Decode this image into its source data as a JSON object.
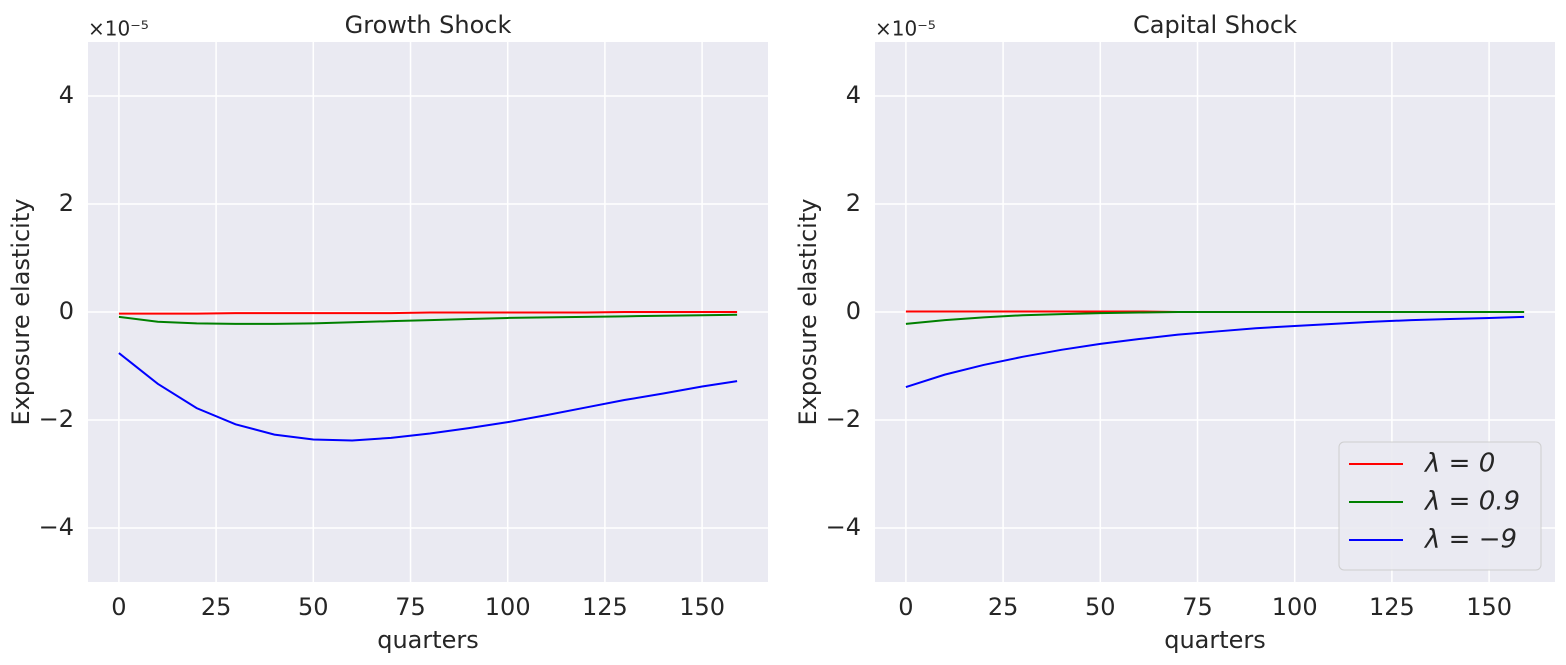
{
  "chart_data": [
    {
      "type": "line",
      "title": "Growth Shock",
      "xlabel": "quarters",
      "ylabel": "Exposure elasticity",
      "offset_text": "×10⁻⁵",
      "x": [
        0,
        10,
        20,
        30,
        40,
        50,
        60,
        70,
        80,
        90,
        100,
        110,
        120,
        130,
        140,
        150,
        159
      ],
      "series": [
        {
          "color": "#ff0000",
          "values": [
            -0.03,
            -0.03,
            -0.03,
            -0.02,
            -0.02,
            -0.02,
            -0.02,
            -0.02,
            -0.01,
            -0.01,
            -0.01,
            -0.01,
            -0.01,
            0.0,
            0.0,
            0.0,
            0.0
          ]
        },
        {
          "color": "#008000",
          "values": [
            -0.09,
            -0.18,
            -0.21,
            -0.22,
            -0.22,
            -0.21,
            -0.19,
            -0.17,
            -0.15,
            -0.13,
            -0.11,
            -0.1,
            -0.09,
            -0.08,
            -0.07,
            -0.06,
            -0.05
          ]
        },
        {
          "color": "#0000ff",
          "values": [
            -0.76,
            -1.33,
            -1.78,
            -2.08,
            -2.27,
            -2.36,
            -2.38,
            -2.33,
            -2.25,
            -2.15,
            -2.04,
            -1.91,
            -1.77,
            -1.63,
            -1.51,
            -1.38,
            -1.28
          ]
        }
      ],
      "xlim": [
        -7.95,
        166.95
      ],
      "xticks": [
        0,
        25,
        50,
        75,
        100,
        125,
        150
      ],
      "ylim": [
        -5,
        5
      ],
      "yticks": [
        {
          "value": -4,
          "label": "−4"
        },
        {
          "value": -2,
          "label": "−2"
        },
        0,
        2,
        4
      ],
      "grid": true
    },
    {
      "type": "line",
      "title": "Capital Shock",
      "xlabel": "quarters",
      "ylabel": "Exposure elasticity",
      "offset_text": "×10⁻⁵",
      "x": [
        0,
        10,
        20,
        30,
        40,
        50,
        60,
        70,
        80,
        90,
        100,
        110,
        120,
        130,
        140,
        150,
        159
      ],
      "series": [
        {
          "name": "λ = 0",
          "color": "#ff0000",
          "values": [
            0.01,
            0.01,
            0.01,
            0.01,
            0.01,
            0.01,
            0.01,
            0.0,
            0.0,
            0.0,
            0.0,
            0.0,
            0.0,
            0.0,
            0.0,
            0.0,
            0.0
          ]
        },
        {
          "name": "λ = 0.9",
          "color": "#008000",
          "values": [
            -0.22,
            -0.15,
            -0.1,
            -0.06,
            -0.04,
            -0.02,
            -0.01,
            0.0,
            0.0,
            0.0,
            0.0,
            0.0,
            0.0,
            0.0,
            0.0,
            0.0,
            0.0
          ]
        },
        {
          "name": "λ = −9",
          "color": "#0000ff",
          "values": [
            -1.39,
            -1.16,
            -0.98,
            -0.83,
            -0.7,
            -0.59,
            -0.5,
            -0.42,
            -0.36,
            -0.3,
            -0.26,
            -0.22,
            -0.18,
            -0.15,
            -0.13,
            -0.11,
            -0.09
          ]
        }
      ],
      "xlim": [
        -7.95,
        166.95
      ],
      "xticks": [
        0,
        25,
        50,
        75,
        100,
        125,
        150
      ],
      "ylim": [
        -5,
        5
      ],
      "yticks": [
        {
          "value": -4,
          "label": "−4"
        },
        {
          "value": -2,
          "label": "−2"
        },
        0,
        2,
        4
      ],
      "grid": true,
      "legend": "lower right"
    }
  ]
}
